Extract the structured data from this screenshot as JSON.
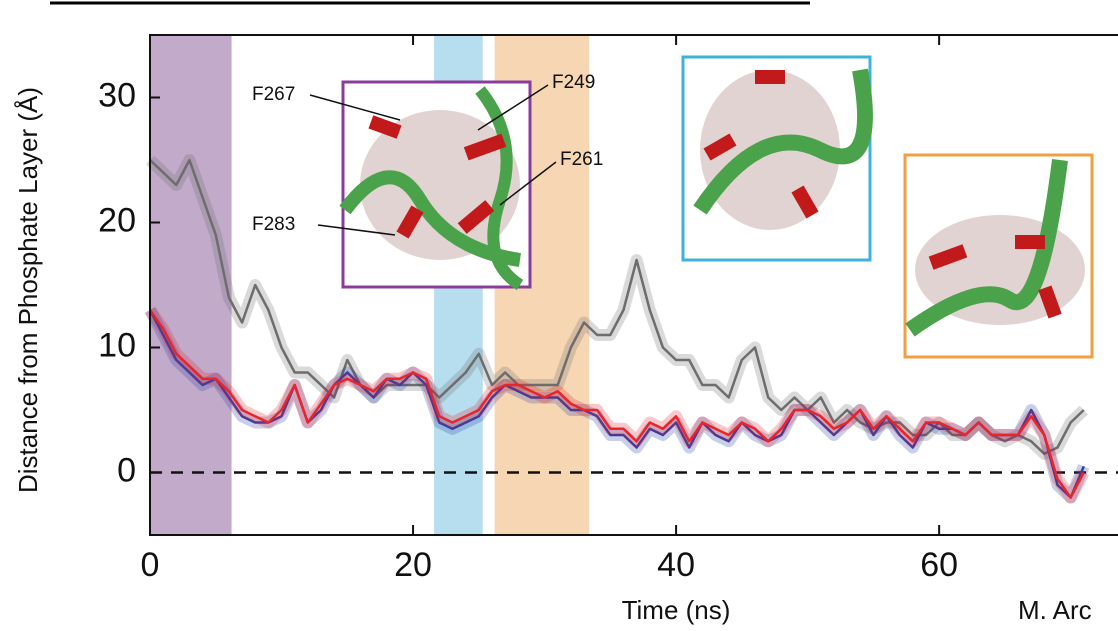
{
  "chart_data": {
    "type": "line",
    "xlabel": "Time (ns)",
    "ylabel": "Distance from Phosphate Layer (Å)",
    "credit": "M. Arc",
    "xlim": [
      0,
      73.6
    ],
    "ylim": [
      -5,
      35
    ],
    "xticks": [
      0,
      20,
      40,
      60
    ],
    "yticks": [
      0,
      10,
      20,
      30
    ],
    "regions": [
      {
        "start": 0,
        "end": 6.2,
        "color": "#b79bc1"
      },
      {
        "start": 21.6,
        "end": 25.3,
        "color": "#a9d8ec"
      },
      {
        "start": 26.2,
        "end": 33.4,
        "color": "#f6cfa6"
      }
    ],
    "annotations": [
      "F267",
      "F249",
      "F261",
      "F283"
    ],
    "x": [
      0,
      1,
      2,
      3,
      4,
      5,
      6,
      7,
      8,
      9,
      10,
      11,
      12,
      13,
      14,
      15,
      16,
      17,
      18,
      19,
      20,
      21,
      22,
      23,
      24,
      25,
      26,
      27,
      28,
      29,
      30,
      31,
      32,
      33,
      34,
      35,
      36,
      37,
      38,
      39,
      40,
      41,
      42,
      43,
      44,
      45,
      46,
      47,
      48,
      49,
      50,
      51,
      52,
      53,
      54,
      55,
      56,
      57,
      58,
      59,
      60,
      61,
      62,
      63,
      64,
      65,
      66,
      67,
      68,
      69,
      70,
      71
    ],
    "series": [
      {
        "name": "gray",
        "color": "#6d6d6d",
        "values": [
          25,
          24,
          23,
          25,
          22,
          19,
          14,
          12,
          15,
          13,
          10,
          8,
          8,
          7,
          6,
          9,
          7,
          6,
          7,
          7,
          7,
          7,
          6,
          7,
          8,
          9.5,
          7,
          8,
          7,
          7,
          7,
          7,
          10,
          12,
          11,
          11,
          13,
          17,
          13,
          10,
          9,
          9,
          7,
          7,
          6,
          9,
          10,
          6,
          5,
          6,
          5,
          6,
          4,
          5,
          4,
          3.5,
          4,
          4,
          3,
          3,
          4,
          3,
          3,
          4,
          3,
          2.5,
          3,
          2.5,
          1.5,
          2,
          4,
          5
        ]
      },
      {
        "name": "blue",
        "color": "#2b3fa8",
        "values": [
          13,
          11,
          9,
          8,
          7,
          7.5,
          6,
          4.5,
          4,
          4,
          4.5,
          7,
          4,
          5,
          7,
          8,
          7,
          6,
          7.5,
          7,
          8,
          7,
          4,
          3.5,
          4,
          4.5,
          6,
          7,
          6.5,
          6,
          6,
          6,
          5,
          5,
          4.5,
          3,
          3,
          2,
          3.5,
          3,
          4,
          2,
          4,
          3,
          2.5,
          4,
          3,
          2.5,
          3,
          5,
          5,
          4,
          3,
          4,
          5,
          3,
          4.5,
          3,
          2,
          4,
          3.5,
          3.5,
          3,
          4,
          3,
          3,
          3,
          5,
          3,
          -1,
          -2,
          0.5
        ]
      },
      {
        "name": "red",
        "color": "#e8252b",
        "values": [
          13,
          11.5,
          9.5,
          8.5,
          7.5,
          7.5,
          6.5,
          5,
          4.5,
          4,
          5,
          7,
          4,
          5.5,
          7,
          7.5,
          7,
          6.5,
          7.5,
          7.5,
          8,
          7.5,
          4.5,
          4,
          4.5,
          5,
          6.5,
          7,
          7,
          6.5,
          6,
          6.5,
          5.5,
          5,
          5,
          3.5,
          3.5,
          2.5,
          4,
          3.5,
          4.5,
          2.5,
          4,
          3.5,
          3,
          4,
          3.5,
          2.5,
          3.5,
          5,
          5,
          4.5,
          3.5,
          4,
          5,
          3.5,
          4.5,
          3.5,
          2.5,
          4,
          4,
          3.5,
          3,
          4,
          3,
          3,
          3,
          4.5,
          3,
          -0.5,
          -2,
          0
        ]
      }
    ]
  }
}
